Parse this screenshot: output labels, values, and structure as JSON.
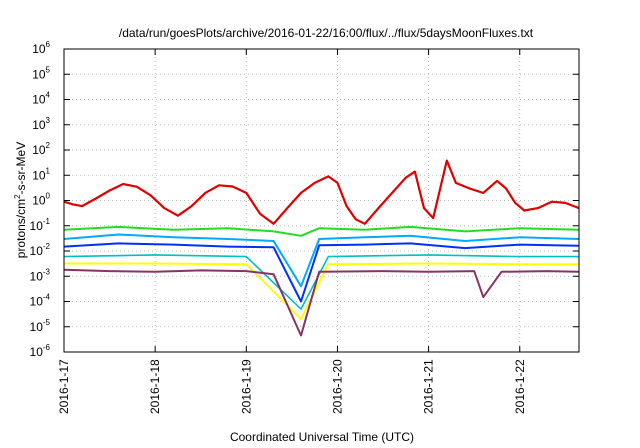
{
  "chart_data": {
    "type": "line",
    "title": "/data/run/goesPlots/archive/2016-01-22/16:00/flux/../flux/5daysMoonFluxes.txt",
    "xlabel": "Coordinated Universal Time (UTC)",
    "ylabel": {
      "pre": "protons/cm",
      "sup": "2",
      "post": "-s-sr-MeV"
    },
    "yscale": "log",
    "ylim": [
      1e-06,
      1000000.0
    ],
    "xlim": [
      0,
      5.65
    ],
    "grid": true,
    "y_ticks": [
      {
        "base": "10",
        "exp": "-6",
        "value": 1e-06
      },
      {
        "base": "10",
        "exp": "-5",
        "value": 1e-05
      },
      {
        "base": "10",
        "exp": "-4",
        "value": 0.0001
      },
      {
        "base": "10",
        "exp": "-3",
        "value": 0.001
      },
      {
        "base": "10",
        "exp": "-2",
        "value": 0.01
      },
      {
        "base": "10",
        "exp": "-1",
        "value": 0.1
      },
      {
        "base": "10",
        "exp": "0",
        "value": 1
      },
      {
        "base": "10",
        "exp": "1",
        "value": 10
      },
      {
        "base": "10",
        "exp": "2",
        "value": 100
      },
      {
        "base": "10",
        "exp": "3",
        "value": 1000
      },
      {
        "base": "10",
        "exp": "4",
        "value": 10000
      },
      {
        "base": "10",
        "exp": "5",
        "value": 100000
      },
      {
        "base": "10",
        "exp": "6",
        "value": 1000000
      }
    ],
    "x_ticks": [
      {
        "label": "2016-1-17",
        "value": 0
      },
      {
        "label": "2016-1-18",
        "value": 1
      },
      {
        "label": "2016-1-19",
        "value": 2
      },
      {
        "label": "2016-1-20",
        "value": 3
      },
      {
        "label": "2016-1-21",
        "value": 4
      },
      {
        "label": "2016-1-22",
        "value": 5
      }
    ],
    "series": [
      {
        "color": "#e00000",
        "width": 2.2,
        "values": [
          [
            0,
            0.9
          ],
          [
            0.1,
            0.7
          ],
          [
            0.2,
            0.6
          ],
          [
            0.35,
            1.2
          ],
          [
            0.5,
            2.5
          ],
          [
            0.65,
            4.5
          ],
          [
            0.8,
            3.5
          ],
          [
            0.95,
            1.6
          ],
          [
            1.1,
            0.5
          ],
          [
            1.25,
            0.25
          ],
          [
            1.4,
            0.6
          ],
          [
            1.55,
            2.0
          ],
          [
            1.7,
            4.0
          ],
          [
            1.85,
            3.6
          ],
          [
            2.0,
            2.0
          ],
          [
            2.15,
            0.3
          ],
          [
            2.3,
            0.12
          ],
          [
            2.45,
            0.5
          ],
          [
            2.6,
            2.0
          ],
          [
            2.75,
            5.0
          ],
          [
            2.9,
            9.0
          ],
          [
            3.0,
            5.0
          ],
          [
            3.1,
            0.6
          ],
          [
            3.2,
            0.18
          ],
          [
            3.3,
            0.12
          ],
          [
            3.45,
            0.5
          ],
          [
            3.6,
            2.0
          ],
          [
            3.75,
            8.0
          ],
          [
            3.85,
            14.0
          ],
          [
            3.95,
            0.5
          ],
          [
            4.05,
            0.2
          ],
          [
            4.2,
            38.0
          ],
          [
            4.3,
            5.0
          ],
          [
            4.45,
            3.0
          ],
          [
            4.6,
            2.0
          ],
          [
            4.75,
            6.0
          ],
          [
            4.85,
            3.0
          ],
          [
            4.95,
            0.8
          ],
          [
            5.05,
            0.4
          ],
          [
            5.2,
            0.5
          ],
          [
            5.35,
            0.9
          ],
          [
            5.5,
            0.8
          ],
          [
            5.65,
            0.5
          ]
        ]
      },
      {
        "color": "#22dd22",
        "width": 2,
        "values": [
          [
            0,
            0.07
          ],
          [
            0.6,
            0.09
          ],
          [
            1.2,
            0.07
          ],
          [
            1.8,
            0.08
          ],
          [
            2.3,
            0.06
          ],
          [
            2.6,
            0.04
          ],
          [
            2.8,
            0.08
          ],
          [
            3.3,
            0.07
          ],
          [
            3.8,
            0.09
          ],
          [
            4.4,
            0.06
          ],
          [
            5.0,
            0.08
          ],
          [
            5.65,
            0.07
          ]
        ]
      },
      {
        "color": "#00aaff",
        "width": 2,
        "values": [
          [
            0,
            0.03
          ],
          [
            0.6,
            0.045
          ],
          [
            1.2,
            0.035
          ],
          [
            1.8,
            0.03
          ],
          [
            2.3,
            0.025
          ],
          [
            2.6,
            0.0004
          ],
          [
            2.8,
            0.03
          ],
          [
            3.3,
            0.035
          ],
          [
            3.8,
            0.04
          ],
          [
            4.4,
            0.025
          ],
          [
            5.0,
            0.035
          ],
          [
            5.65,
            0.03
          ]
        ]
      },
      {
        "color": "#0030ff",
        "width": 2,
        "values": [
          [
            0,
            0.015
          ],
          [
            0.6,
            0.02
          ],
          [
            1.2,
            0.018
          ],
          [
            1.8,
            0.015
          ],
          [
            2.3,
            0.014
          ],
          [
            2.6,
            0.0001
          ],
          [
            2.8,
            0.017
          ],
          [
            3.3,
            0.018
          ],
          [
            3.8,
            0.02
          ],
          [
            4.4,
            0.013
          ],
          [
            5.0,
            0.018
          ],
          [
            5.65,
            0.016
          ]
        ]
      },
      {
        "color": "#00c0c0",
        "width": 1.6,
        "values": [
          [
            0,
            0.006
          ],
          [
            1.0,
            0.007
          ],
          [
            2.0,
            0.006
          ],
          [
            2.6,
            5e-05
          ],
          [
            2.9,
            0.006
          ],
          [
            4.0,
            0.007
          ],
          [
            5.0,
            0.006
          ],
          [
            5.65,
            0.006
          ]
        ]
      },
      {
        "color": "#ffff00",
        "width": 2,
        "values": [
          [
            0,
            0.0032
          ],
          [
            1.0,
            0.0032
          ],
          [
            2.0,
            0.003
          ],
          [
            2.6,
            2e-05
          ],
          [
            2.9,
            0.003
          ],
          [
            4.0,
            0.0032
          ],
          [
            5.0,
            0.003
          ],
          [
            5.65,
            0.003
          ]
        ]
      },
      {
        "color": "#883366",
        "width": 2,
        "values": [
          [
            0,
            0.0018
          ],
          [
            0.5,
            0.0016
          ],
          [
            1.0,
            0.0015
          ],
          [
            1.5,
            0.0017
          ],
          [
            2.0,
            0.0016
          ],
          [
            2.3,
            0.0012
          ],
          [
            2.6,
            4.5e-06
          ],
          [
            2.8,
            0.0015
          ],
          [
            3.5,
            0.0016
          ],
          [
            4.0,
            0.0015
          ],
          [
            4.5,
            0.0016
          ],
          [
            4.6,
            0.00015
          ],
          [
            4.8,
            0.0015
          ],
          [
            5.3,
            0.0016
          ],
          [
            5.65,
            0.0015
          ]
        ]
      }
    ]
  }
}
